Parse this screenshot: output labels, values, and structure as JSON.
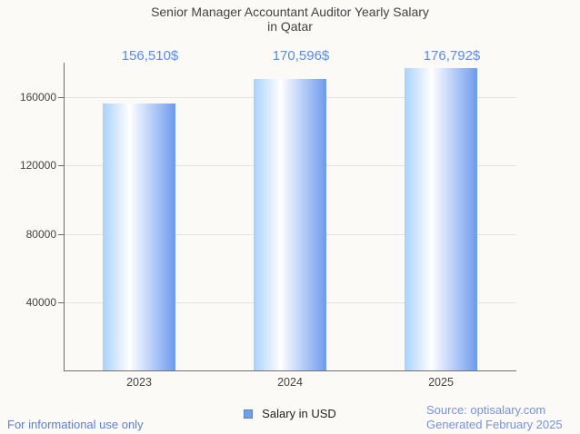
{
  "chart_data": {
    "type": "bar",
    "title": "Senior Manager Accountant Auditor Yearly Salary in Qatar",
    "title_lines": [
      "Senior Manager Accountant Auditor Yearly Salary",
      "in Qatar"
    ],
    "categories": [
      "2023",
      "2024",
      "2025"
    ],
    "series": [
      {
        "name": "Salary in USD",
        "values": [
          156510,
          170596,
          176792
        ]
      }
    ],
    "value_labels": [
      "156,510$",
      "170,596$",
      "176,792$"
    ],
    "xlabel": "",
    "ylabel": "",
    "ylim": [
      0,
      180000
    ],
    "yticks": [
      40000,
      80000,
      120000,
      160000
    ],
    "ytick_labels": [
      "40000",
      "80000",
      "120000",
      "160000"
    ],
    "grid": true,
    "legend_position": "bottom-center"
  },
  "legend": {
    "label": "Salary in USD"
  },
  "footer": {
    "left_note": "For informational use only",
    "source": "Source: optisalary.com",
    "generated": "Generated February 2025"
  },
  "colors": {
    "background": "#fbfaf6",
    "title_text": "#424242",
    "axis_text": "#424242",
    "axis_line": "#6e6e6e",
    "gridline": "#e3e2de",
    "value_label": "#578bee",
    "bar_gradient_left": "#a9d2fb",
    "bar_gradient_mid": "#ffffff",
    "bar_gradient_right": "#6d9aee",
    "legend_swatch_fill": "#6fa3e9",
    "legend_swatch_border": "#5582c8",
    "footer_left_blue": "#5c7edd",
    "footer_right_blue": "#7792e0"
  }
}
